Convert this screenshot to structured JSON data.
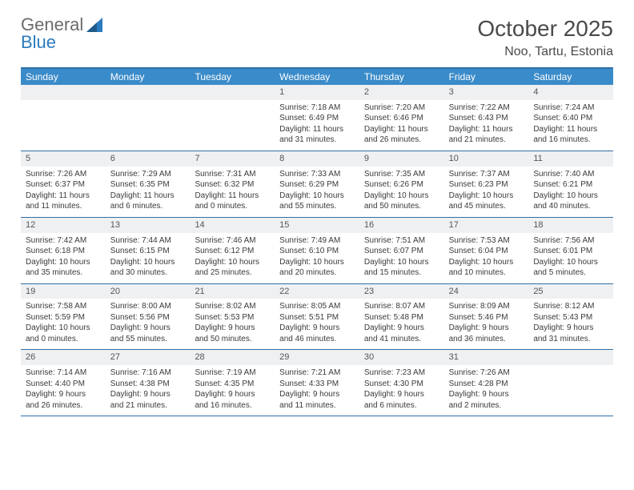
{
  "brand": {
    "part1": "General",
    "part2": "Blue"
  },
  "title": "October 2025",
  "location": "Noo, Tartu, Estonia",
  "colors": {
    "header_bar": "#3a8bc9",
    "rule": "#2e6fa6",
    "daynum_bg": "#eef0f2",
    "text": "#3a3a3a",
    "title_text": "#4a4a4a",
    "logo_gray": "#6a6a6a",
    "logo_blue": "#2b7bbf"
  },
  "weekdays": [
    "Sunday",
    "Monday",
    "Tuesday",
    "Wednesday",
    "Thursday",
    "Friday",
    "Saturday"
  ],
  "weeks": [
    [
      {
        "n": "",
        "sr": "",
        "ss": "",
        "dl": ""
      },
      {
        "n": "",
        "sr": "",
        "ss": "",
        "dl": ""
      },
      {
        "n": "",
        "sr": "",
        "ss": "",
        "dl": ""
      },
      {
        "n": "1",
        "sr": "Sunrise: 7:18 AM",
        "ss": "Sunset: 6:49 PM",
        "dl": "Daylight: 11 hours and 31 minutes."
      },
      {
        "n": "2",
        "sr": "Sunrise: 7:20 AM",
        "ss": "Sunset: 6:46 PM",
        "dl": "Daylight: 11 hours and 26 minutes."
      },
      {
        "n": "3",
        "sr": "Sunrise: 7:22 AM",
        "ss": "Sunset: 6:43 PM",
        "dl": "Daylight: 11 hours and 21 minutes."
      },
      {
        "n": "4",
        "sr": "Sunrise: 7:24 AM",
        "ss": "Sunset: 6:40 PM",
        "dl": "Daylight: 11 hours and 16 minutes."
      }
    ],
    [
      {
        "n": "5",
        "sr": "Sunrise: 7:26 AM",
        "ss": "Sunset: 6:37 PM",
        "dl": "Daylight: 11 hours and 11 minutes."
      },
      {
        "n": "6",
        "sr": "Sunrise: 7:29 AM",
        "ss": "Sunset: 6:35 PM",
        "dl": "Daylight: 11 hours and 6 minutes."
      },
      {
        "n": "7",
        "sr": "Sunrise: 7:31 AM",
        "ss": "Sunset: 6:32 PM",
        "dl": "Daylight: 11 hours and 0 minutes."
      },
      {
        "n": "8",
        "sr": "Sunrise: 7:33 AM",
        "ss": "Sunset: 6:29 PM",
        "dl": "Daylight: 10 hours and 55 minutes."
      },
      {
        "n": "9",
        "sr": "Sunrise: 7:35 AM",
        "ss": "Sunset: 6:26 PM",
        "dl": "Daylight: 10 hours and 50 minutes."
      },
      {
        "n": "10",
        "sr": "Sunrise: 7:37 AM",
        "ss": "Sunset: 6:23 PM",
        "dl": "Daylight: 10 hours and 45 minutes."
      },
      {
        "n": "11",
        "sr": "Sunrise: 7:40 AM",
        "ss": "Sunset: 6:21 PM",
        "dl": "Daylight: 10 hours and 40 minutes."
      }
    ],
    [
      {
        "n": "12",
        "sr": "Sunrise: 7:42 AM",
        "ss": "Sunset: 6:18 PM",
        "dl": "Daylight: 10 hours and 35 minutes."
      },
      {
        "n": "13",
        "sr": "Sunrise: 7:44 AM",
        "ss": "Sunset: 6:15 PM",
        "dl": "Daylight: 10 hours and 30 minutes."
      },
      {
        "n": "14",
        "sr": "Sunrise: 7:46 AM",
        "ss": "Sunset: 6:12 PM",
        "dl": "Daylight: 10 hours and 25 minutes."
      },
      {
        "n": "15",
        "sr": "Sunrise: 7:49 AM",
        "ss": "Sunset: 6:10 PM",
        "dl": "Daylight: 10 hours and 20 minutes."
      },
      {
        "n": "16",
        "sr": "Sunrise: 7:51 AM",
        "ss": "Sunset: 6:07 PM",
        "dl": "Daylight: 10 hours and 15 minutes."
      },
      {
        "n": "17",
        "sr": "Sunrise: 7:53 AM",
        "ss": "Sunset: 6:04 PM",
        "dl": "Daylight: 10 hours and 10 minutes."
      },
      {
        "n": "18",
        "sr": "Sunrise: 7:56 AM",
        "ss": "Sunset: 6:01 PM",
        "dl": "Daylight: 10 hours and 5 minutes."
      }
    ],
    [
      {
        "n": "19",
        "sr": "Sunrise: 7:58 AM",
        "ss": "Sunset: 5:59 PM",
        "dl": "Daylight: 10 hours and 0 minutes."
      },
      {
        "n": "20",
        "sr": "Sunrise: 8:00 AM",
        "ss": "Sunset: 5:56 PM",
        "dl": "Daylight: 9 hours and 55 minutes."
      },
      {
        "n": "21",
        "sr": "Sunrise: 8:02 AM",
        "ss": "Sunset: 5:53 PM",
        "dl": "Daylight: 9 hours and 50 minutes."
      },
      {
        "n": "22",
        "sr": "Sunrise: 8:05 AM",
        "ss": "Sunset: 5:51 PM",
        "dl": "Daylight: 9 hours and 46 minutes."
      },
      {
        "n": "23",
        "sr": "Sunrise: 8:07 AM",
        "ss": "Sunset: 5:48 PM",
        "dl": "Daylight: 9 hours and 41 minutes."
      },
      {
        "n": "24",
        "sr": "Sunrise: 8:09 AM",
        "ss": "Sunset: 5:46 PM",
        "dl": "Daylight: 9 hours and 36 minutes."
      },
      {
        "n": "25",
        "sr": "Sunrise: 8:12 AM",
        "ss": "Sunset: 5:43 PM",
        "dl": "Daylight: 9 hours and 31 minutes."
      }
    ],
    [
      {
        "n": "26",
        "sr": "Sunrise: 7:14 AM",
        "ss": "Sunset: 4:40 PM",
        "dl": "Daylight: 9 hours and 26 minutes."
      },
      {
        "n": "27",
        "sr": "Sunrise: 7:16 AM",
        "ss": "Sunset: 4:38 PM",
        "dl": "Daylight: 9 hours and 21 minutes."
      },
      {
        "n": "28",
        "sr": "Sunrise: 7:19 AM",
        "ss": "Sunset: 4:35 PM",
        "dl": "Daylight: 9 hours and 16 minutes."
      },
      {
        "n": "29",
        "sr": "Sunrise: 7:21 AM",
        "ss": "Sunset: 4:33 PM",
        "dl": "Daylight: 9 hours and 11 minutes."
      },
      {
        "n": "30",
        "sr": "Sunrise: 7:23 AM",
        "ss": "Sunset: 4:30 PM",
        "dl": "Daylight: 9 hours and 6 minutes."
      },
      {
        "n": "31",
        "sr": "Sunrise: 7:26 AM",
        "ss": "Sunset: 4:28 PM",
        "dl": "Daylight: 9 hours and 2 minutes."
      },
      {
        "n": "",
        "sr": "",
        "ss": "",
        "dl": ""
      }
    ]
  ]
}
